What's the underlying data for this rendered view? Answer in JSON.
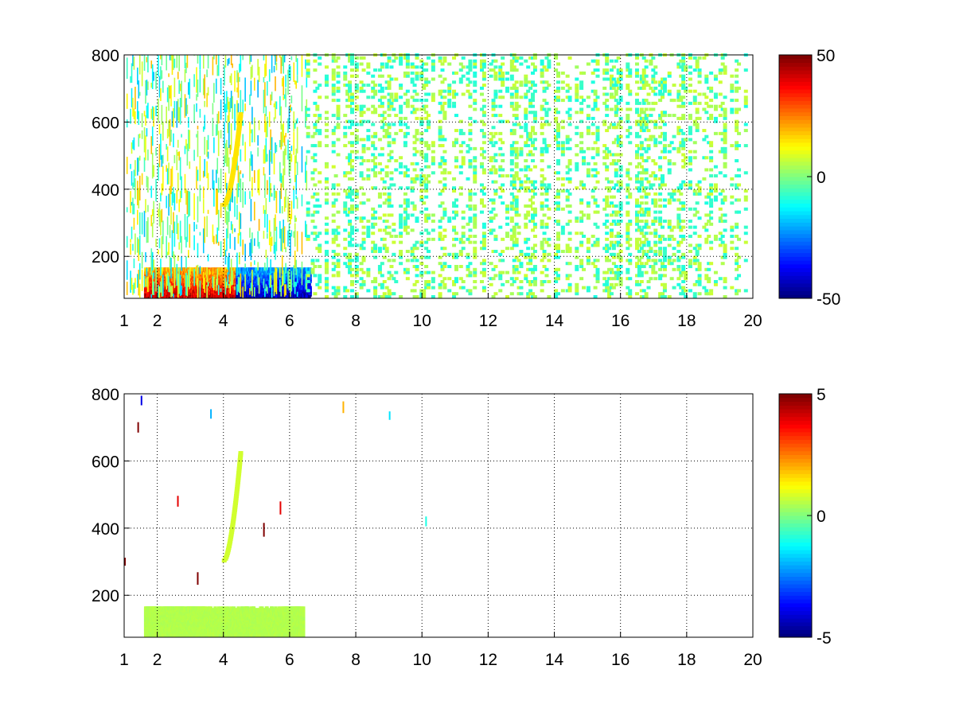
{
  "figure": {
    "background": "#ffffff",
    "axis_color": "#000000",
    "grid_color": "#000000"
  },
  "chart_data": [
    {
      "type": "heatmap",
      "panel": "top",
      "title": "",
      "xlabel": "",
      "ylabel": "",
      "xlim": [
        1,
        20
      ],
      "ylim": [
        75,
        800
      ],
      "x_ticks": [
        1,
        2,
        4,
        6,
        8,
        10,
        12,
        14,
        16,
        18,
        20
      ],
      "y_ticks": [
        200,
        400,
        600,
        800
      ],
      "grid": true,
      "colormap": "jet",
      "colorbar": {
        "min": -50,
        "max": 50,
        "ticks": [
          50,
          0,
          -50
        ]
      },
      "features": [
        {
          "kind": "dense-band",
          "x_range": [
            1.6,
            6.6
          ],
          "y_range": [
            75,
            160
          ],
          "value_range": [
            -50,
            50
          ]
        },
        {
          "kind": "sparse-vertical-lines",
          "x_range": [
            1,
            6.5
          ],
          "y_range": [
            75,
            800
          ],
          "value_range": [
            -20,
            20
          ]
        },
        {
          "kind": "curved-ridge",
          "x_range": [
            4.0,
            4.5
          ],
          "y_range": [
            350,
            620
          ],
          "value": 15
        },
        {
          "kind": "scattered-columns",
          "x_range": [
            6.5,
            19.8
          ],
          "y_range": [
            75,
            800
          ],
          "value_range": [
            -10,
            8
          ]
        }
      ]
    },
    {
      "type": "heatmap",
      "panel": "bottom",
      "title": "",
      "xlabel": "",
      "ylabel": "",
      "xlim": [
        1,
        20
      ],
      "ylim": [
        75,
        800
      ],
      "x_ticks": [
        1,
        2,
        4,
        6,
        8,
        10,
        12,
        14,
        16,
        18,
        20
      ],
      "y_ticks": [
        200,
        400,
        600,
        800
      ],
      "grid": true,
      "colormap": "jet",
      "colorbar": {
        "min": -5,
        "max": 5,
        "ticks": [
          5,
          0,
          -5
        ]
      },
      "features": [
        {
          "kind": "dense-band",
          "x_range": [
            1.6,
            6.4
          ],
          "y_range": [
            75,
            160
          ],
          "value": 0.5
        },
        {
          "kind": "curved-ridge",
          "x_range": [
            4.0,
            4.5
          ],
          "y_range": [
            300,
            620
          ],
          "value": 0.8
        },
        {
          "kind": "spikes",
          "points": [
            {
              "x": 1.0,
              "y": 300,
              "value": 5
            },
            {
              "x": 1.4,
              "y": 700,
              "value": 5
            },
            {
              "x": 1.5,
              "y": 780,
              "value": -4
            },
            {
              "x": 2.6,
              "y": 480,
              "value": 4
            },
            {
              "x": 3.2,
              "y": 250,
              "value": 5
            },
            {
              "x": 3.6,
              "y": 740,
              "value": -2
            },
            {
              "x": 5.2,
              "y": 395,
              "value": 5
            },
            {
              "x": 5.7,
              "y": 460,
              "value": 4
            },
            {
              "x": 7.6,
              "y": 760,
              "value": 2
            },
            {
              "x": 9.0,
              "y": 735,
              "value": -1.5
            },
            {
              "x": 10.1,
              "y": 420,
              "value": -1
            }
          ]
        }
      ]
    }
  ]
}
